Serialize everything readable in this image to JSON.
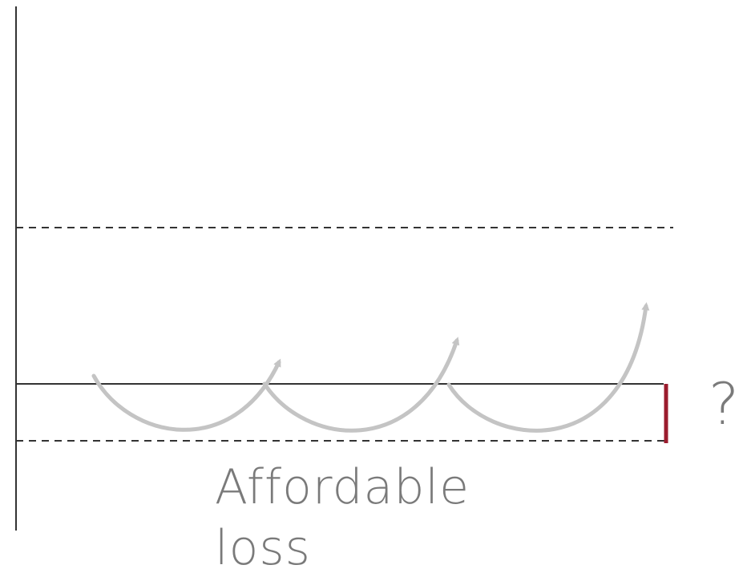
{
  "diagram": {
    "caption_line_1": "Affordable",
    "caption_line_2": "loss",
    "question_mark": "?",
    "colors": {
      "axis": "#333333",
      "dashed": "#333333",
      "arrow": "#c4c4c4",
      "marker": "#9b1c2e",
      "text": "#7a7a7a"
    }
  }
}
